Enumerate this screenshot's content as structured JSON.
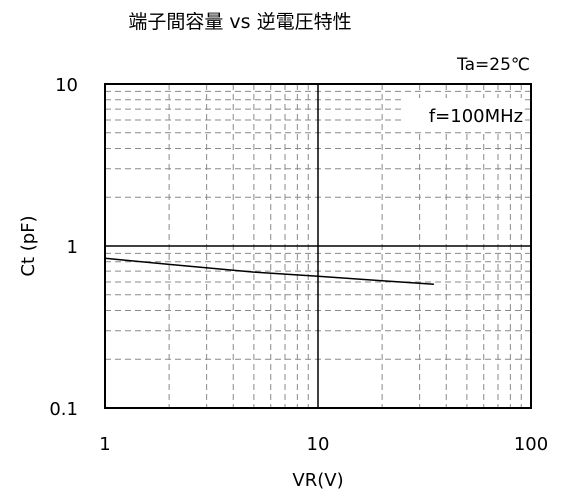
{
  "chart_data": {
    "type": "line",
    "title": "端子間容量 vs 逆電圧特性",
    "condition": "Ta=25℃",
    "annotation": "f=100MHz",
    "xlabel": "VR(V)",
    "ylabel": "Ct (pF)",
    "x_scale": "log",
    "y_scale": "log",
    "xlim": [
      1,
      100
    ],
    "ylim": [
      0.1,
      10
    ],
    "x_ticks": [
      {
        "value": 1,
        "label": "1"
      },
      {
        "value": 10,
        "label": "10"
      },
      {
        "value": 100,
        "label": "100"
      }
    ],
    "y_ticks": [
      {
        "value": 0.1,
        "label": "0.1"
      },
      {
        "value": 1,
        "label": "1"
      },
      {
        "value": 10,
        "label": "10"
      }
    ],
    "grid": true,
    "series": [
      {
        "color": "#000000",
        "x": [
          1,
          2,
          5,
          10,
          20,
          35
        ],
        "y": [
          0.84,
          0.77,
          0.69,
          0.65,
          0.61,
          0.58
        ]
      }
    ]
  }
}
